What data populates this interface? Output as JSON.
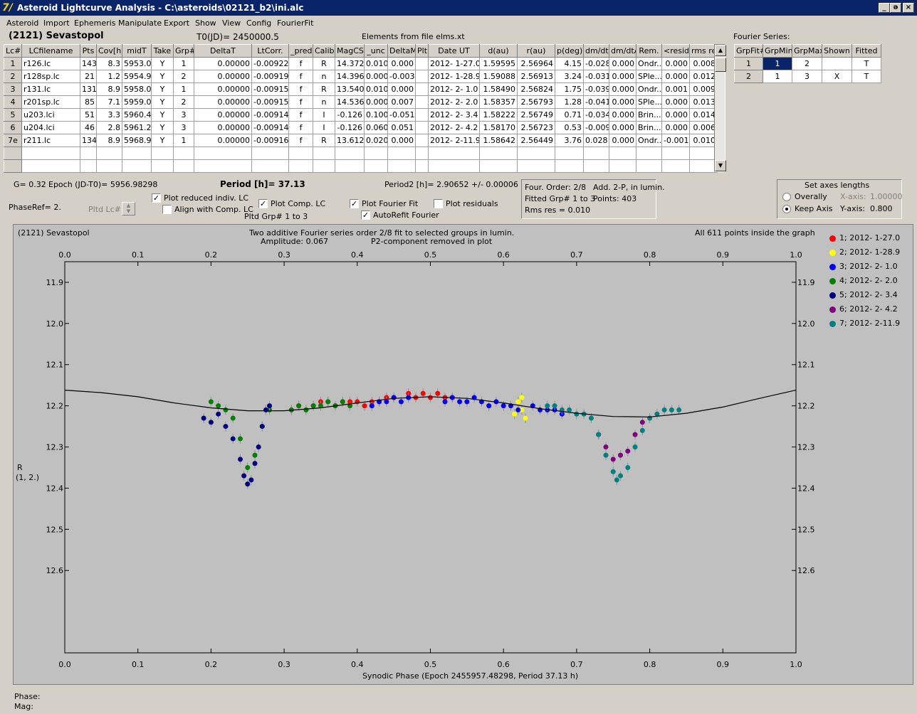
{
  "window": {
    "title": "Asteroid Lightcurve Analysis - C:\\asteroids\\02121_b2\\ini.alc",
    "icon_label": "7/",
    "buttons": {
      "minimize": "_",
      "restore": "ǝ",
      "close": "×"
    }
  },
  "menu": [
    "Asteroid",
    "Import",
    "Ephemeris",
    "Manipulate",
    "Export",
    "Show",
    "View",
    "Config",
    "FourierFit"
  ],
  "header": {
    "asteroid_name": "(2121) Sevastopol",
    "t0": "T0(JD)= 2450000.5",
    "elements": "Elements from file elms.xt"
  },
  "lc_table": {
    "columns": [
      "Lc#",
      "LCfilename",
      "Pts",
      "Cov[h]",
      "midT",
      "Take",
      "Grp#",
      "DeltaT",
      "LtCorr.",
      "_pred",
      "Calib.",
      "MagCS",
      "_unc",
      "DeltaM",
      "Plt",
      "Date UT",
      "d(au)",
      "r(au)",
      "p(deg)",
      "dm/dt",
      "dm/dtA",
      "Rem.",
      "<resid>",
      "rms res"
    ],
    "rows": [
      [
        "1",
        "r126.lc",
        "143",
        "8.3",
        "5953.0",
        "Y",
        "1",
        "0.00000",
        "-0.00922",
        "f",
        "R",
        "14.372",
        "0.010",
        "0.000",
        "",
        "2012- 1-27.0",
        "1.59595",
        "2.56964",
        "4.15",
        "-0.028",
        "0.000",
        "Ondr...",
        "0.000",
        "0.008"
      ],
      [
        "2",
        "r128sp.lc",
        "21",
        "1.2",
        "5954.9",
        "Y",
        "2",
        "0.00000",
        "-0.00919",
        "f",
        "n",
        "14.396",
        "0.000",
        "-0.003",
        "",
        "2012- 1-28.9",
        "1.59088",
        "2.56913",
        "3.24",
        "-0.031",
        "0.000",
        "SPle...",
        "0.000",
        "0.012"
      ],
      [
        "3",
        "r131.lc",
        "131",
        "8.9",
        "5958.0",
        "Y",
        "1",
        "0.00000",
        "-0.00915",
        "f",
        "R",
        "13.540",
        "0.010",
        "0.000",
        "",
        "2012- 2- 1.0",
        "1.58490",
        "2.56824",
        "1.75",
        "-0.039",
        "0.000",
        "Ondr...",
        "0.001",
        "0.009"
      ],
      [
        "4",
        "r201sp.lc",
        "85",
        "7.1",
        "5959.0",
        "Y",
        "2",
        "0.00000",
        "-0.00915",
        "f",
        "n",
        "14.536",
        "0.000",
        "0.007",
        "",
        "2012- 2- 2.0",
        "1.58357",
        "2.56793",
        "1.28",
        "-0.041",
        "0.000",
        "SPle...",
        "0.000",
        "0.013"
      ],
      [
        "5",
        "u203.lci",
        "51",
        "3.3",
        "5960.4",
        "Y",
        "3",
        "0.00000",
        "-0.00914",
        "f",
        "I",
        "-0.126",
        "0.100",
        "-0.051",
        "",
        "2012- 2- 3.4",
        "1.58222",
        "2.56749",
        "0.71",
        "-0.034",
        "0.000",
        "Brin...",
        "0.000",
        "0.014"
      ],
      [
        "6",
        "u204.lci",
        "46",
        "2.8",
        "5961.2",
        "Y",
        "3",
        "0.00000",
        "-0.00914",
        "f",
        "I",
        "-0.126",
        "0.060",
        "0.051",
        "",
        "2012- 2- 4.2",
        "1.58170",
        "2.56723",
        "0.53",
        "-0.009",
        "0.000",
        "Brin...",
        "0.000",
        "0.006"
      ],
      [
        "7e",
        "r211.lc",
        "134",
        "8.9",
        "5968.9",
        "Y",
        "1",
        "0.00000",
        "-0.00916",
        "f",
        "R",
        "13.612",
        "0.020",
        "0.000",
        "",
        "2012- 2-11.9",
        "1.58642",
        "2.56449",
        "3.76",
        "0.028",
        "0.000",
        "Ondr...",
        "-0.001",
        "0.010"
      ]
    ]
  },
  "fourier": {
    "label": "Fourier Series:",
    "columns": [
      "GrpFit#",
      "GrpMin",
      "GrpMax",
      "Shown",
      "Fitted"
    ],
    "rows": [
      [
        "1",
        "1",
        "2",
        "",
        "T"
      ],
      [
        "2",
        "1",
        "3",
        "X",
        "T"
      ]
    ]
  },
  "info": {
    "g": "G= 0.32",
    "epoch": "Epoch (JD-T0)= 5956.98298",
    "period": "Period [h]= 37.13",
    "period2": "Period2 [h]= 2.90652 +/- 0.00006",
    "phaseref": "PhaseRef= 2.",
    "pltd_lc": "Pltd Lc#:",
    "pltd_grp": "Pltd Grp#  1   to   3"
  },
  "checks": {
    "plot_reduced": {
      "label": "Plot reduced indiv. LC",
      "checked": true
    },
    "align_comp": {
      "label": "Align with Comp. LC",
      "checked": false
    },
    "plot_comp": {
      "label": "Plot Comp. LC",
      "checked": true
    },
    "plot_fourier": {
      "label": "Plot Fourier Fit",
      "checked": true
    },
    "autorefit": {
      "label": "AutoRefit Fourier",
      "checked": true
    },
    "plot_residuals": {
      "label": "Plot residuals",
      "checked": false
    }
  },
  "fit_info": {
    "order": "Four. Order:  2/8",
    "add": "Add. 2-P, in lumin.",
    "fitted": "Fitted Grp# 1 to 3",
    "points": "Points: 403",
    "rms": "Rms res    = 0.010"
  },
  "axes_box": {
    "title": "Set axes lengths",
    "overall": "Overally",
    "keep": "Keep Axis",
    "selected": "keep",
    "x_label": "X-axis:",
    "x_value": "1.00000",
    "y_label": "Y-axis:",
    "y_value": "0.800"
  },
  "plot": {
    "name": "(2121) Sevastopol",
    "title1": "Two additive Fourier series order 2/8 fit to selected groups in lumin.",
    "title2a": "Amplitude: 0.067",
    "title2b": "P2-component removed in plot",
    "count": "All 611 points inside the graph",
    "ylabel1": "R",
    "ylabel2": "(1, 2.)"
  },
  "status": {
    "phase": "Phase:",
    "mag": "Mag:"
  },
  "chart_data": {
    "type": "scatter",
    "xlabel": "Synodic Phase (Epoch 2455957.48298, Period 37.13 h)",
    "xlim": [
      0.0,
      1.0
    ],
    "ylim": [
      12.8,
      11.85
    ],
    "y_inverted": true,
    "x_ticks": [
      "0.0",
      "0.1",
      "0.2",
      "0.3",
      "0.4",
      "0.5",
      "0.6",
      "0.7",
      "0.8",
      "0.9",
      "1.0"
    ],
    "y_ticks": [
      "11.9",
      "12.0",
      "12.1",
      "12.2",
      "12.3",
      "12.4",
      "12.5",
      "12.6"
    ],
    "series": [
      {
        "name": "1; 2012- 1-27.0",
        "color": "#ff0000",
        "points": [
          [
            0.31,
            12.21
          ],
          [
            0.32,
            12.2
          ],
          [
            0.33,
            12.21
          ],
          [
            0.34,
            12.2
          ],
          [
            0.35,
            12.19
          ],
          [
            0.36,
            12.19
          ],
          [
            0.37,
            12.2
          ],
          [
            0.38,
            12.19
          ],
          [
            0.39,
            12.19
          ],
          [
            0.4,
            12.19
          ],
          [
            0.41,
            12.2
          ],
          [
            0.42,
            12.19
          ],
          [
            0.43,
            12.19
          ],
          [
            0.44,
            12.18
          ],
          [
            0.45,
            12.18
          ],
          [
            0.47,
            12.17
          ],
          [
            0.48,
            12.18
          ],
          [
            0.49,
            12.17
          ],
          [
            0.5,
            12.18
          ],
          [
            0.51,
            12.17
          ],
          [
            0.52,
            12.18
          ],
          [
            0.53,
            12.18
          ]
        ]
      },
      {
        "name": "2; 2012- 1-28.9",
        "color": "#ffff00",
        "points": [
          [
            0.61,
            12.2
          ],
          [
            0.615,
            12.22
          ],
          [
            0.62,
            12.19
          ],
          [
            0.625,
            12.21
          ],
          [
            0.63,
            12.23
          ],
          [
            0.625,
            12.18
          ]
        ]
      },
      {
        "name": "3; 2012- 2- 1.0",
        "color": "#0000ff",
        "points": [
          [
            0.42,
            12.2
          ],
          [
            0.43,
            12.19
          ],
          [
            0.44,
            12.19
          ],
          [
            0.45,
            12.18
          ],
          [
            0.46,
            12.19
          ],
          [
            0.47,
            12.18
          ],
          [
            0.52,
            12.19
          ],
          [
            0.53,
            12.18
          ],
          [
            0.54,
            12.19
          ],
          [
            0.55,
            12.19
          ],
          [
            0.56,
            12.18
          ],
          [
            0.57,
            12.19
          ],
          [
            0.58,
            12.2
          ],
          [
            0.59,
            12.19
          ],
          [
            0.6,
            12.2
          ],
          [
            0.61,
            12.2
          ],
          [
            0.62,
            12.21
          ],
          [
            0.64,
            12.2
          ],
          [
            0.65,
            12.21
          ],
          [
            0.66,
            12.21
          ],
          [
            0.67,
            12.21
          ],
          [
            0.68,
            12.22
          ]
        ]
      },
      {
        "name": "4; 2012- 2- 2.0",
        "color": "#008000",
        "points": [
          [
            0.2,
            12.19
          ],
          [
            0.21,
            12.2
          ],
          [
            0.22,
            12.21
          ],
          [
            0.23,
            12.23
          ],
          [
            0.24,
            12.28
          ],
          [
            0.25,
            12.35
          ],
          [
            0.26,
            12.32
          ],
          [
            0.27,
            12.25
          ],
          [
            0.28,
            12.21
          ],
          [
            0.31,
            12.21
          ],
          [
            0.32,
            12.2
          ],
          [
            0.33,
            12.21
          ],
          [
            0.34,
            12.2
          ],
          [
            0.35,
            12.2
          ],
          [
            0.36,
            12.19
          ],
          [
            0.37,
            12.2
          ],
          [
            0.38,
            12.19
          ],
          [
            0.39,
            12.2
          ]
        ]
      },
      {
        "name": "5; 2012- 2- 3.4",
        "color": "#000080",
        "points": [
          [
            0.19,
            12.23
          ],
          [
            0.2,
            12.24
          ],
          [
            0.21,
            12.22
          ],
          [
            0.22,
            12.25
          ],
          [
            0.23,
            12.28
          ],
          [
            0.24,
            12.33
          ],
          [
            0.245,
            12.37
          ],
          [
            0.25,
            12.39
          ],
          [
            0.255,
            12.38
          ],
          [
            0.26,
            12.34
          ],
          [
            0.265,
            12.3
          ],
          [
            0.27,
            12.25
          ],
          [
            0.275,
            12.21
          ],
          [
            0.28,
            12.2
          ]
        ]
      },
      {
        "name": "6; 2012- 2- 4.2",
        "color": "#800080",
        "points": [
          [
            0.73,
            12.27
          ],
          [
            0.74,
            12.3
          ],
          [
            0.75,
            12.33
          ],
          [
            0.76,
            12.32
          ],
          [
            0.77,
            12.31
          ],
          [
            0.78,
            12.27
          ],
          [
            0.79,
            12.24
          ]
        ]
      },
      {
        "name": "7; 2012- 2-11.9",
        "color": "#008080",
        "points": [
          [
            0.66,
            12.2
          ],
          [
            0.67,
            12.2
          ],
          [
            0.68,
            12.21
          ],
          [
            0.69,
            12.21
          ],
          [
            0.7,
            12.22
          ],
          [
            0.71,
            12.22
          ],
          [
            0.72,
            12.23
          ],
          [
            0.73,
            12.27
          ],
          [
            0.74,
            12.32
          ],
          [
            0.75,
            12.36
          ],
          [
            0.755,
            12.38
          ],
          [
            0.76,
            12.37
          ],
          [
            0.77,
            12.35
          ],
          [
            0.78,
            12.3
          ],
          [
            0.79,
            12.26
          ],
          [
            0.8,
            12.23
          ],
          [
            0.81,
            12.22
          ],
          [
            0.82,
            12.21
          ],
          [
            0.83,
            12.21
          ],
          [
            0.84,
            12.21
          ]
        ]
      }
    ],
    "fit_curve": [
      [
        0.0,
        12.162
      ],
      [
        0.05,
        12.168
      ],
      [
        0.1,
        12.178
      ],
      [
        0.15,
        12.193
      ],
      [
        0.2,
        12.205
      ],
      [
        0.25,
        12.212
      ],
      [
        0.3,
        12.212
      ],
      [
        0.35,
        12.205
      ],
      [
        0.4,
        12.193
      ],
      [
        0.45,
        12.182
      ],
      [
        0.5,
        12.178
      ],
      [
        0.55,
        12.182
      ],
      [
        0.6,
        12.193
      ],
      [
        0.65,
        12.207
      ],
      [
        0.7,
        12.218
      ],
      [
        0.75,
        12.226
      ],
      [
        0.8,
        12.227
      ],
      [
        0.85,
        12.218
      ],
      [
        0.9,
        12.203
      ],
      [
        0.95,
        12.182
      ],
      [
        1.0,
        12.162
      ]
    ]
  }
}
